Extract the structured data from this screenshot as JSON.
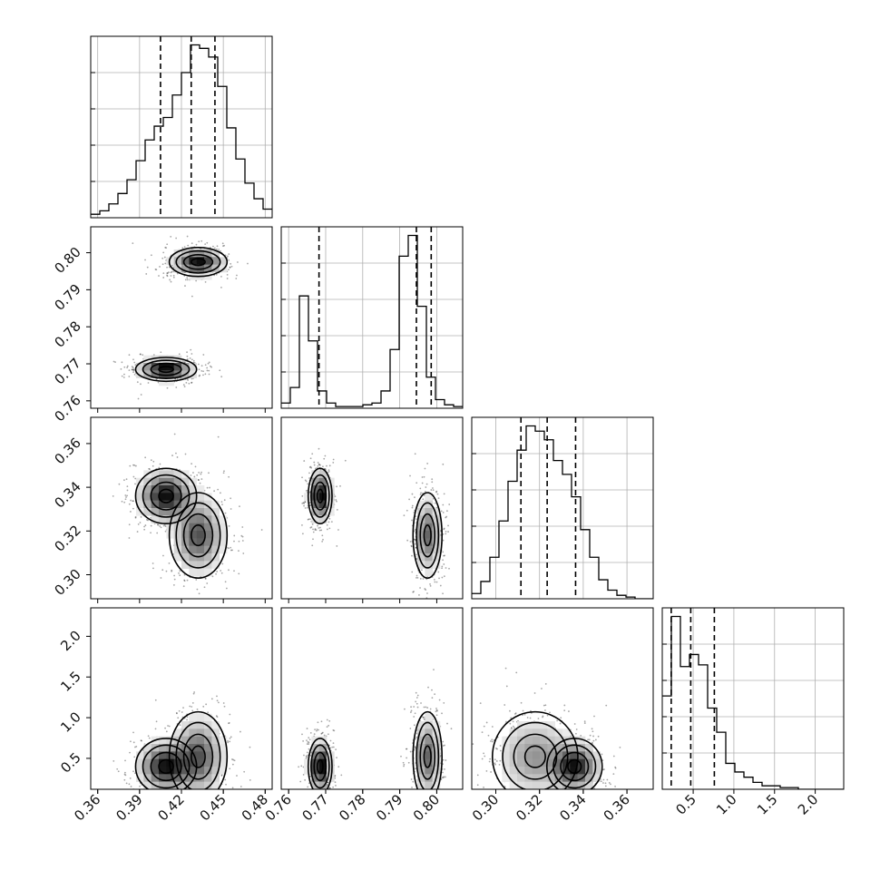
{
  "chart_data": {
    "type": "corner",
    "parameters": [
      {
        "range": [
          0.355,
          0.485
        ],
        "ticks": [
          0.36,
          0.39,
          0.42,
          0.45,
          0.48
        ],
        "tick_labels": [
          "0.36",
          "0.39",
          "0.42",
          "0.45",
          "0.48"
        ],
        "quantiles": [
          0.405,
          0.427,
          0.444
        ]
      },
      {
        "range": [
          0.758,
          0.807
        ],
        "ticks": [
          0.76,
          0.77,
          0.78,
          0.79,
          0.8
        ],
        "tick_labels": [
          "0.76",
          "0.77",
          "0.78",
          "0.79",
          "0.80"
        ],
        "quantiles": [
          0.7682,
          0.7945,
          0.7985
        ]
      },
      {
        "range": [
          0.289,
          0.372
        ],
        "ticks": [
          0.3,
          0.32,
          0.34,
          0.36
        ],
        "tick_labels": [
          "0.30",
          "0.32",
          "0.34",
          "0.36"
        ],
        "quantiles": [
          0.3115,
          0.3235,
          0.3365
        ]
      },
      {
        "range": [
          0.12,
          2.35
        ],
        "ticks": [
          0.5,
          1.0,
          1.5,
          2.0
        ],
        "tick_labels": [
          "0.5",
          "1.0",
          "1.5",
          "2.0"
        ],
        "quantiles": [
          0.23,
          0.47,
          0.76
        ]
      }
    ],
    "histograms": [
      {
        "edges_start": 0.355,
        "bin_width": 0.0065,
        "counts": [
          2,
          4,
          8,
          14,
          22,
          33,
          45,
          53,
          58,
          71,
          84,
          100,
          98,
          93,
          76,
          52,
          34,
          20,
          11,
          5
        ]
      },
      {
        "edges_start": 0.758,
        "bin_width": 0.00245,
        "counts": [
          3,
          12,
          65,
          39,
          10,
          3,
          1,
          1,
          1,
          2,
          3,
          10,
          34,
          88,
          100,
          59,
          18,
          5,
          2,
          1
        ]
      },
      {
        "edges_start": 0.289,
        "bin_width": 0.00415,
        "counts": [
          3,
          10,
          24,
          45,
          68,
          86,
          100,
          97,
          92,
          80,
          72,
          59,
          40,
          24,
          11,
          5,
          2,
          1,
          0,
          0
        ]
      },
      {
        "edges_start": 0.12,
        "bin_width": 0.1115,
        "counts": [
          54,
          100,
          71,
          78,
          72,
          47,
          33,
          15,
          10,
          7,
          4,
          2,
          2,
          1,
          1,
          0,
          0,
          0,
          0,
          0
        ]
      }
    ],
    "clusters": [
      {
        "mean": [
          0.432,
          0.7975,
          0.318,
          0.52
        ],
        "sd": [
          0.009,
          0.0017,
          0.0085,
          0.24
        ],
        "weight": 0.5
      },
      {
        "mean": [
          0.409,
          0.7685,
          0.336,
          0.4
        ],
        "sd": [
          0.0095,
          0.0014,
          0.0055,
          0.15
        ],
        "weight": 0.5
      }
    ]
  }
}
